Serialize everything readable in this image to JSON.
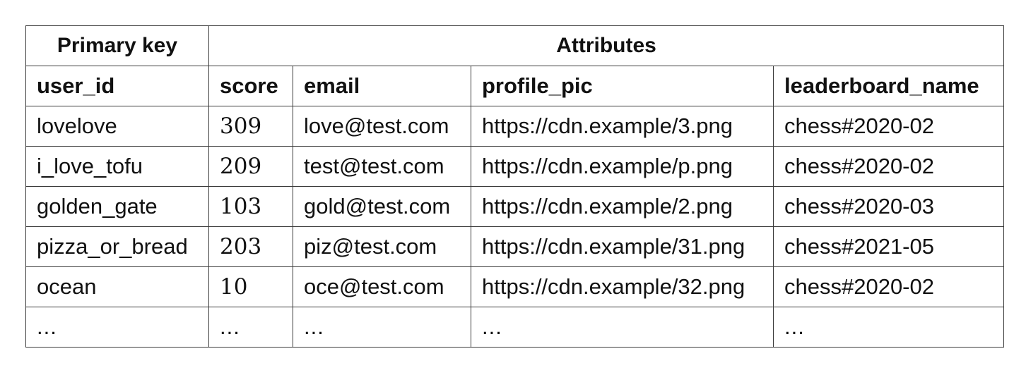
{
  "table": {
    "group_headers": {
      "primary_key": "Primary key",
      "attributes": "Attributes"
    },
    "columns": [
      "user_id",
      "score",
      "email",
      "profile_pic",
      "leaderboard_name"
    ],
    "rows": [
      [
        "lovelove",
        "309",
        "love@test.com",
        "https://cdn.example/3.png",
        "chess#2020-02"
      ],
      [
        "i_love_tofu",
        "209",
        "test@test.com",
        "https://cdn.example/p.png",
        "chess#2020-02"
      ],
      [
        "golden_gate",
        "103",
        "gold@test.com",
        "https://cdn.example/2.png",
        "chess#2020-03"
      ],
      [
        "pizza_or_bread",
        "203",
        "piz@test.com",
        "https://cdn.example/31.png",
        "chess#2021-05"
      ],
      [
        "ocean",
        "10",
        "oce@test.com",
        "https://cdn.example/32.png",
        "chess#2020-02"
      ],
      [
        "...",
        "...",
        "...",
        "...",
        "..."
      ]
    ]
  }
}
